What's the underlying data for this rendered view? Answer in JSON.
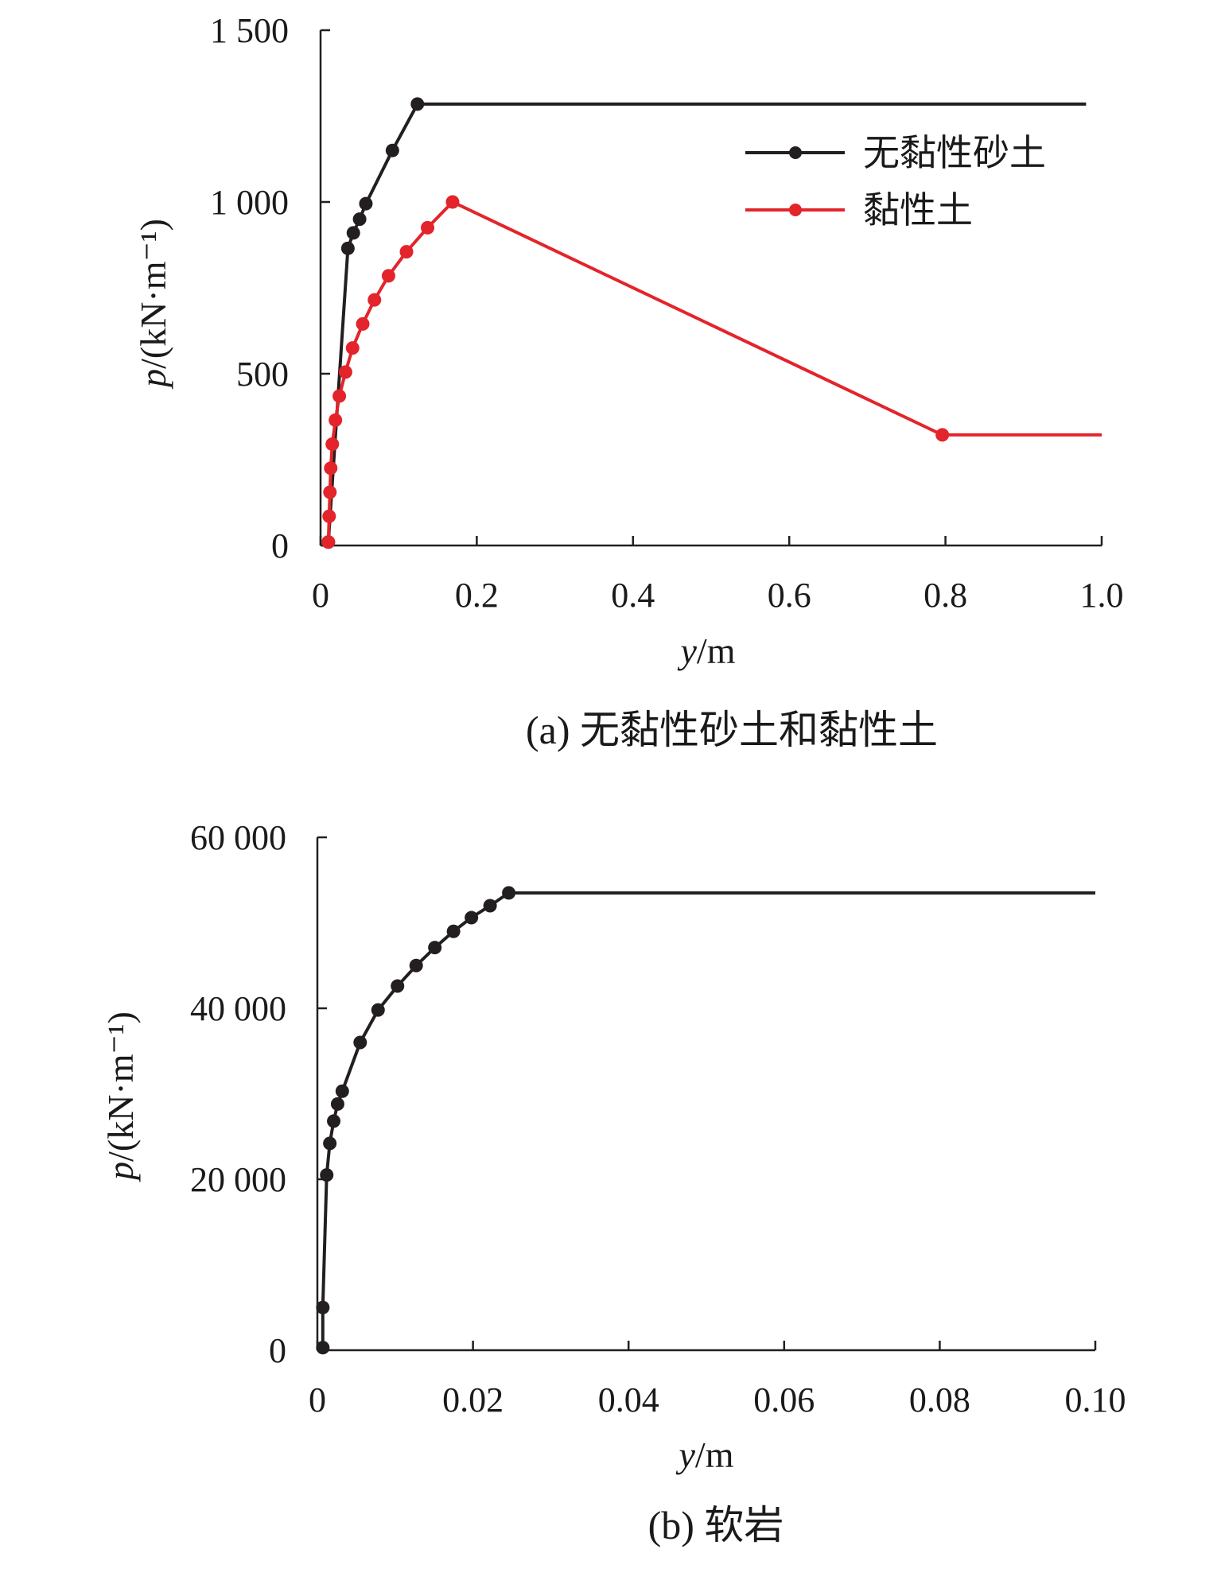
{
  "figure": {
    "caption_a": "(a) 无黏性砂土和黏性土",
    "caption_b": "(b) 软岩"
  },
  "chart_data": [
    {
      "type": "line",
      "panel": "a",
      "xlabel_var": "y",
      "xlabel_unit": "/m",
      "ylabel_var": "p",
      "ylabel_unit": "/(kN·m⁻¹)",
      "xlim": [
        0,
        1.0
      ],
      "ylim": [
        0,
        1500
      ],
      "xticks": [
        0,
        0.2,
        0.4,
        0.6,
        0.8,
        1.0
      ],
      "xtick_labels": [
        "0",
        "0.2",
        "0.4",
        "0.6",
        "0.8",
        "1.0"
      ],
      "yticks": [
        0,
        500,
        1000,
        1500
      ],
      "ytick_labels": [
        "0",
        "500",
        "1 000",
        "1 500"
      ],
      "grid": false,
      "legend_position": "top-right",
      "series": [
        {
          "name": "无黏性砂土",
          "color": "#231f20",
          "x": [
            0.01,
            0.035,
            0.042,
            0.05,
            0.058,
            0.092,
            0.124,
            0.98
          ],
          "y": [
            10,
            865,
            910,
            950,
            995,
            1150,
            1285,
            1285
          ],
          "markers": [
            true,
            true,
            true,
            true,
            true,
            true,
            true,
            false
          ]
        },
        {
          "name": "黏性土",
          "color": "#e3242b",
          "x": [
            0.01,
            0.011,
            0.012,
            0.013,
            0.015,
            0.019,
            0.024,
            0.032,
            0.041,
            0.054,
            0.069,
            0.087,
            0.11,
            0.137,
            0.169,
            0.796,
            1.0
          ],
          "y": [
            10,
            85,
            155,
            225,
            295,
            365,
            435,
            505,
            575,
            645,
            715,
            785,
            855,
            925,
            1000,
            322,
            322
          ],
          "markers": [
            true,
            true,
            true,
            true,
            true,
            true,
            true,
            true,
            true,
            true,
            true,
            true,
            true,
            true,
            true,
            true,
            false
          ]
        }
      ]
    },
    {
      "type": "line",
      "panel": "b",
      "xlabel_var": "y",
      "xlabel_unit": "/m",
      "ylabel_var": "p",
      "ylabel_unit": "/(kN·m⁻¹)",
      "xlim": [
        0,
        0.1
      ],
      "ylim": [
        0,
        60000
      ],
      "xticks": [
        0,
        0.02,
        0.04,
        0.06,
        0.08,
        0.1
      ],
      "xtick_labels": [
        "0",
        "0.02",
        "0.04",
        "0.06",
        "0.08",
        "0.10"
      ],
      "yticks": [
        0,
        20000,
        40000,
        60000
      ],
      "ytick_labels": [
        "0",
        "20 000",
        "40 000",
        "60 000"
      ],
      "grid": false,
      "series": [
        {
          "name": "",
          "color": "#231f20",
          "x": [
            0.0007,
            0.0007,
            0.0012,
            0.0016,
            0.0021,
            0.0026,
            0.0032,
            0.0055,
            0.0078,
            0.0103,
            0.0127,
            0.0151,
            0.0175,
            0.0198,
            0.0222,
            0.0246,
            0.1
          ],
          "y": [
            300,
            5000,
            20500,
            24200,
            26800,
            28800,
            30300,
            36000,
            39800,
            42600,
            45000,
            47100,
            49000,
            50600,
            52000,
            53500,
            53500
          ],
          "markers": [
            true,
            true,
            true,
            true,
            true,
            true,
            true,
            true,
            true,
            true,
            true,
            true,
            true,
            true,
            true,
            true,
            false
          ]
        }
      ]
    }
  ]
}
